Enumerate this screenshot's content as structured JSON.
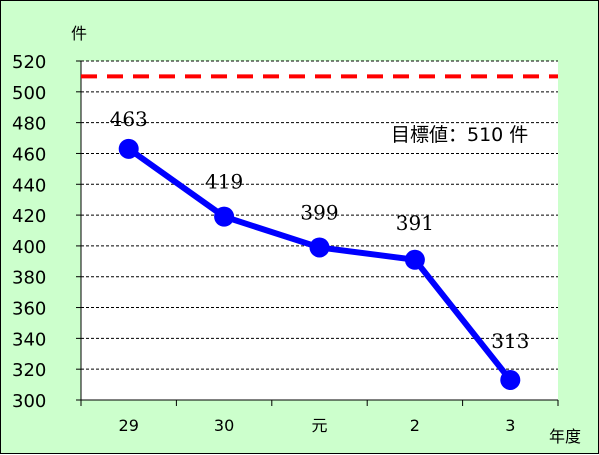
{
  "chart_data": {
    "type": "line",
    "y_unit": "件",
    "x_unit": "年度",
    "categories": [
      "29",
      "30",
      "元",
      "2",
      "3"
    ],
    "values": [
      463,
      419,
      399,
      391,
      313
    ],
    "data_labels": [
      "463",
      "419",
      "399",
      "391",
      "313"
    ],
    "ylim": [
      300,
      520
    ],
    "y_ticks": [
      300,
      320,
      340,
      360,
      380,
      400,
      420,
      440,
      460,
      480,
      500,
      520
    ],
    "grid": true,
    "target": {
      "value": 510,
      "label": "目標値：510 件",
      "color": "#ff0000",
      "style": "dashed"
    },
    "series_color": "#0000ff",
    "background_color": "#ccffcc",
    "plot_background_color": "#ffffff"
  }
}
